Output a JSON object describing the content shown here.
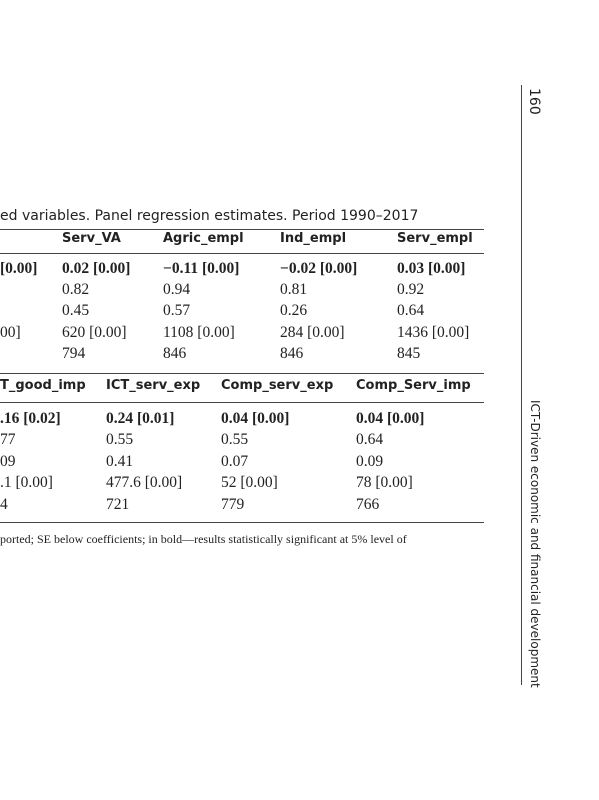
{
  "header": {
    "page_number": "160",
    "running_title": "ICT-Driven economic and financial development"
  },
  "caption": "ed variables. Panel regression estimates. Period 1990–2017",
  "table1": {
    "columns": [
      "",
      "Serv_VA",
      "Agric_empl",
      "Ind_empl",
      "Serv_empl"
    ],
    "rows": [
      [
        "[0.00]",
        "0.02 [0.00]",
        "−0.11 [0.00]",
        "−0.02 [0.00]",
        "0.03 [0.00]"
      ],
      [
        "",
        "0.82",
        "0.94",
        "0.81",
        "0.92"
      ],
      [
        "",
        "0.45",
        "0.57",
        "0.26",
        "0.64"
      ],
      [
        "00]",
        "620 [0.00]",
        "1108 [0.00]",
        "284 [0.00]",
        "1436 [0.00]"
      ],
      [
        "",
        "794",
        "846",
        "846",
        "845"
      ]
    ]
  },
  "table2": {
    "columns": [
      "T_good_imp",
      "ICT_serv_exp",
      "Comp_serv_exp",
      "Comp_Serv_imp"
    ],
    "rows": [
      [
        ".16 [0.02]",
        "0.24 [0.01]",
        "0.04 [0.00]",
        "0.04 [0.00]"
      ],
      [
        "77",
        "0.55",
        "0.55",
        "0.64"
      ],
      [
        "09",
        "0.41",
        "0.07",
        "0.09"
      ],
      [
        ".1 [0.00]",
        "477.6 [0.00]",
        "52 [0.00]",
        "78 [0.00]"
      ],
      [
        "4",
        "721",
        "779",
        "766"
      ]
    ]
  },
  "note": "ported; SE below coefficients; in bold—results statistically significant at 5% level of"
}
